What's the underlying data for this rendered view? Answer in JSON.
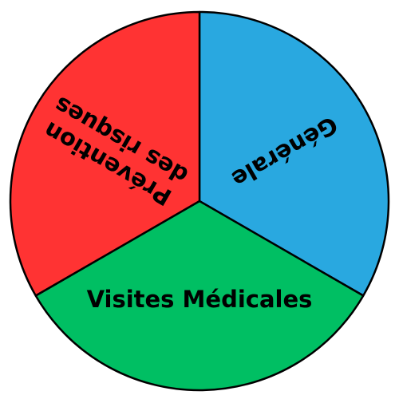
{
  "wheel": {
    "sectors": [
      {
        "label_lines": [
          "Générale"
        ],
        "color": "#29a8e0"
      },
      {
        "label_lines": [
          "Visites Médicales"
        ],
        "color": "#00bf63"
      },
      {
        "label_lines": [
          "Prévention",
          "des risques"
        ],
        "color": "#ff3333"
      }
    ]
  }
}
